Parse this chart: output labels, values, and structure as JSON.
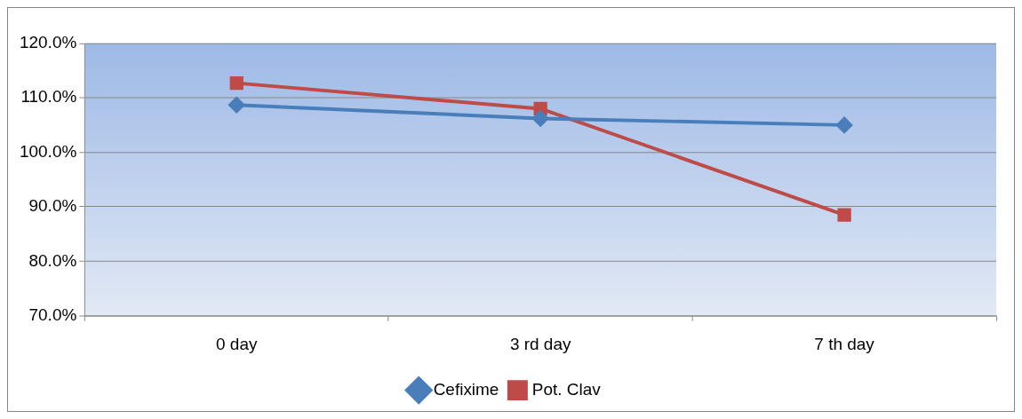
{
  "chart_data": {
    "type": "line",
    "categories": [
      "0 day",
      "3 rd day",
      "7 th day"
    ],
    "series": [
      {
        "name": "Cefixime",
        "color": "#4a7ebb",
        "marker": "diamond",
        "values": [
          108.7,
          106.2,
          105
        ]
      },
      {
        "name": "Pot. Clav",
        "color": "#be4b48",
        "marker": "square",
        "values": [
          112.7,
          108,
          88.5
        ]
      }
    ],
    "ylim": [
      70,
      120
    ],
    "yticks": [
      {
        "value": 70,
        "label": "70.0%"
      },
      {
        "value": 80,
        "label": "80.0%"
      },
      {
        "value": 90,
        "label": "90.0%"
      },
      {
        "value": 100,
        "label": "100.0%"
      },
      {
        "value": 110,
        "label": "110.0%"
      },
      {
        "value": 120,
        "label": "120.0%"
      }
    ],
    "grid": "y",
    "legend": "bottom"
  }
}
